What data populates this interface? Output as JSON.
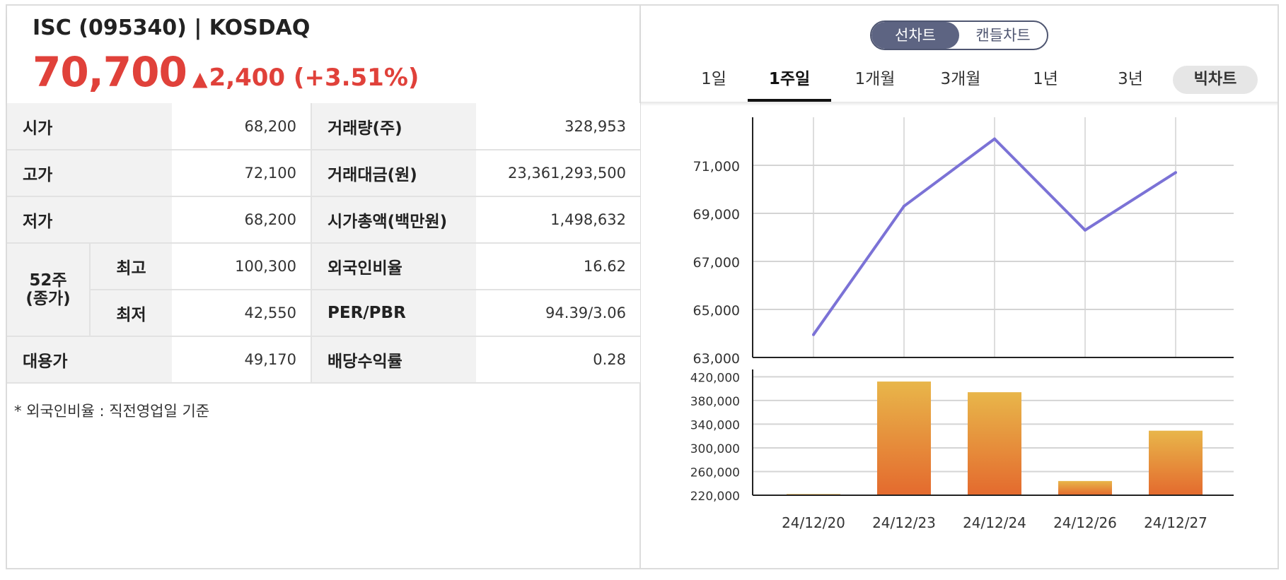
{
  "stock": {
    "title": "ISC (095340) | KOSDAQ",
    "price": "70,700",
    "change_arrow": "▲",
    "change": "2,400 (+3.51%)",
    "up_color": "#e0413a"
  },
  "table": {
    "rows": [
      {
        "label": "시가",
        "value": "68,200",
        "label2": "거래량(주)",
        "value2": "328,953"
      },
      {
        "label": "고가",
        "value": "72,100",
        "label2": "거래대금(원)",
        "value2": "23,361,293,500"
      },
      {
        "label": "저가",
        "value": "68,200",
        "label2": "시가총액(백만원)",
        "value2": "1,498,632"
      },
      {
        "group": "52주\n(종가)",
        "label": "최고",
        "value": "100,300",
        "label2": "외국인비율",
        "value2": "16.62"
      },
      {
        "label": "최저",
        "value": "42,550",
        "label2": "PER/PBR",
        "value2": "94.39/3.06"
      },
      {
        "label": "대용가",
        "value": "49,170",
        "label2": "배당수익률",
        "value2": "0.28"
      }
    ],
    "group_line1": "52주",
    "group_line2": "(종가)",
    "note": "* 외국인비율 : 직전영업일 기준"
  },
  "toggle": {
    "line": "선차트",
    "candle": "캔들차트",
    "active": "line"
  },
  "periods": {
    "tabs": [
      "1일",
      "1주일",
      "1개월",
      "3개월",
      "1년",
      "3년"
    ],
    "active": "1주일",
    "big_chart": "빅차트"
  },
  "chart_data": [
    {
      "type": "line",
      "x": [
        "24/12/20",
        "24/12/23",
        "24/12/24",
        "24/12/26",
        "24/12/27"
      ],
      "series": [
        {
          "values": [
            63950,
            69300,
            72100,
            68300,
            70700
          ]
        }
      ],
      "yticks": [
        "71,000",
        "69,000",
        "67,000",
        "65,000",
        "63,000"
      ],
      "ytick_values": [
        71000,
        69000,
        67000,
        65000,
        63000
      ],
      "ylim": [
        63000,
        73000
      ],
      "color": "#7b72d6",
      "grid": true
    },
    {
      "type": "bar",
      "categories": [
        "24/12/20",
        "24/12/23",
        "24/12/24",
        "24/12/26",
        "24/12/27"
      ],
      "values": [
        222000,
        412000,
        394000,
        244000,
        329000
      ],
      "yticks": [
        "420,000",
        "380,000",
        "340,000",
        "300,000",
        "260,000",
        "220,000"
      ],
      "ytick_values": [
        420000,
        380000,
        340000,
        300000,
        260000,
        220000
      ],
      "ylim": [
        220000,
        430000
      ],
      "color_top": "#e8b64a",
      "color_bottom": "#e46a2e",
      "grid": true
    }
  ]
}
